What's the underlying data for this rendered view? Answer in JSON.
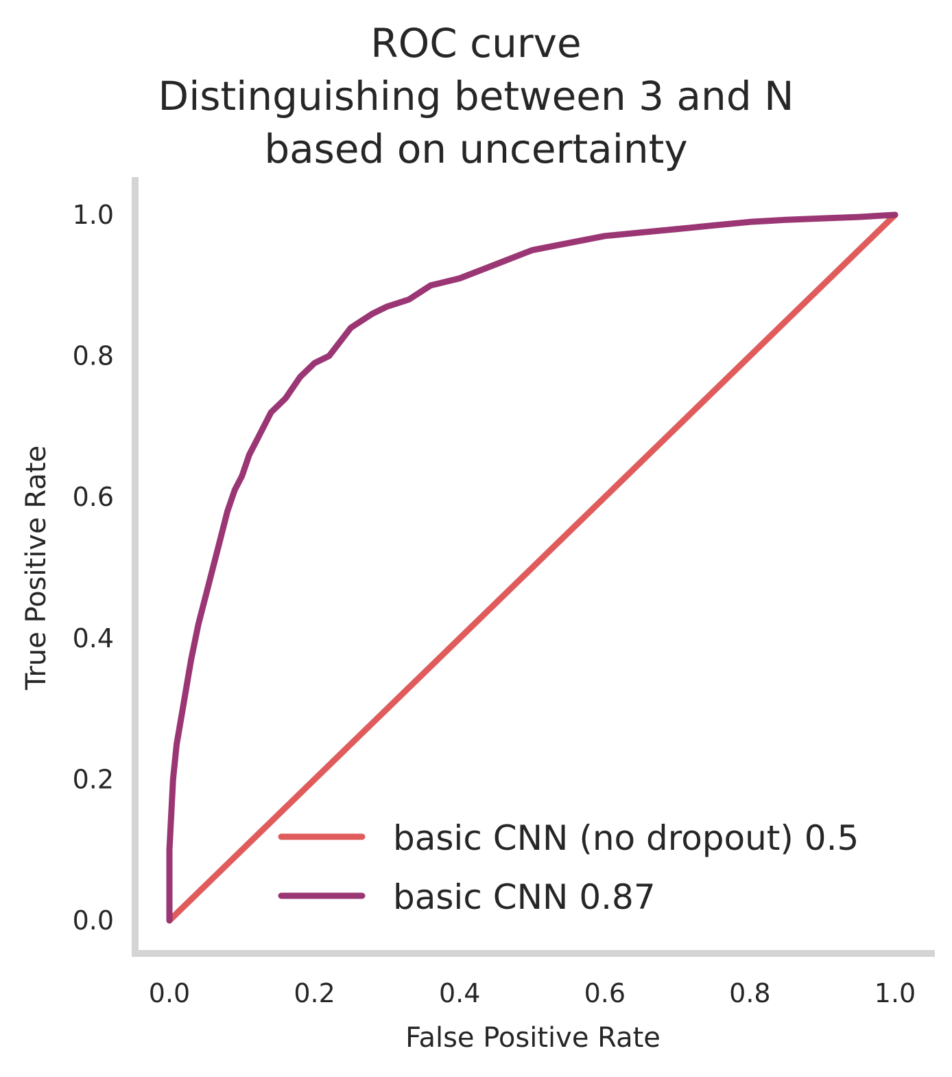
{
  "chart_data": {
    "type": "line",
    "title": [
      "ROC curve",
      "Distinguishing between 3 and N",
      "based on uncertainty"
    ],
    "xlabel": "False Positive Rate",
    "ylabel": "True Positive Rate",
    "xlim": [
      -0.055,
      1.055
    ],
    "ylim": [
      -0.055,
      1.055
    ],
    "xticks": [
      "0.0",
      "0.2",
      "0.4",
      "0.6",
      "0.8",
      "1.0"
    ],
    "yticks": [
      "0.0",
      "0.2",
      "0.4",
      "0.6",
      "0.8",
      "1.0"
    ],
    "grid": false,
    "legend_position": "lower-right",
    "series": [
      {
        "name": "basic CNN (no dropout) 0.5",
        "color": "#e05c5c",
        "x": [
          0.0,
          1.0
        ],
        "y": [
          0.0,
          1.0
        ]
      },
      {
        "name": "basic CNN 0.87",
        "color": "#9b3674",
        "x": [
          0.0,
          0.0,
          0.005,
          0.01,
          0.015,
          0.02,
          0.025,
          0.03,
          0.04,
          0.05,
          0.06,
          0.07,
          0.08,
          0.09,
          0.1,
          0.11,
          0.12,
          0.14,
          0.16,
          0.18,
          0.2,
          0.22,
          0.25,
          0.28,
          0.3,
          0.33,
          0.36,
          0.4,
          0.45,
          0.5,
          0.55,
          0.6,
          0.65,
          0.7,
          0.75,
          0.8,
          0.85,
          0.9,
          0.95,
          1.0
        ],
        "y": [
          0.0,
          0.1,
          0.2,
          0.25,
          0.28,
          0.31,
          0.34,
          0.37,
          0.42,
          0.46,
          0.5,
          0.54,
          0.58,
          0.61,
          0.63,
          0.66,
          0.68,
          0.72,
          0.74,
          0.77,
          0.79,
          0.8,
          0.84,
          0.86,
          0.87,
          0.88,
          0.9,
          0.91,
          0.93,
          0.95,
          0.96,
          0.97,
          0.975,
          0.98,
          0.985,
          0.99,
          0.993,
          0.995,
          0.997,
          1.0
        ]
      }
    ]
  }
}
